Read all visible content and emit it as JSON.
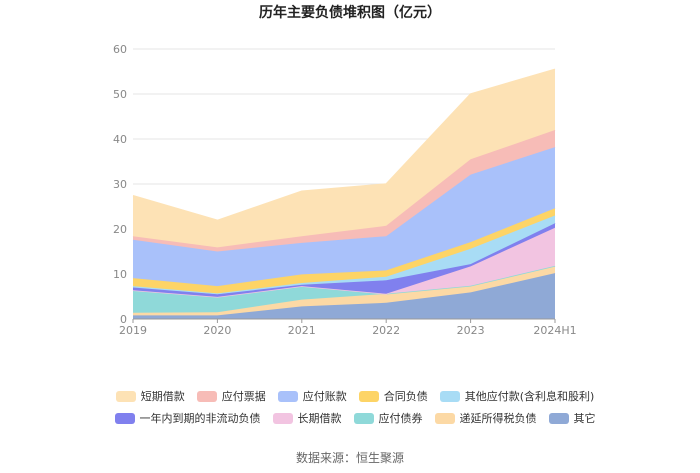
{
  "chart_data": {
    "type": "area",
    "stacked": true,
    "title": "历年主要负债堆积图（亿元）",
    "xlabel": "",
    "ylabel": "",
    "categories": [
      "2019",
      "2020",
      "2021",
      "2022",
      "2023",
      "2024H1"
    ],
    "yticks": [
      0,
      10,
      20,
      30,
      40,
      50,
      60
    ],
    "ylim": [
      0,
      60
    ],
    "grid": true,
    "legend_position": "bottom",
    "series": [
      {
        "name": "其它",
        "color": "#8fa9d6",
        "values": [
          0.8,
          0.8,
          2.8,
          3.6,
          5.9,
          10.2
        ]
      },
      {
        "name": "递延所得税负债",
        "color": "#fcd9a5",
        "values": [
          0.6,
          0.7,
          1.5,
          2.0,
          1.5,
          1.6
        ]
      },
      {
        "name": "应付债券",
        "color": "#8fd9d9",
        "values": [
          5.0,
          3.4,
          3.0,
          0.0,
          0.0,
          0.0
        ]
      },
      {
        "name": "长期借款",
        "color": "#f2c4e1",
        "values": [
          0.0,
          0.0,
          0.0,
          0.0,
          4.3,
          8.5
        ]
      },
      {
        "name": "一年内到期的非流动负债",
        "color": "#8080ee",
        "values": [
          0.6,
          0.6,
          0.3,
          3.0,
          0.5,
          1.0
        ]
      },
      {
        "name": "其他应付款(含利息和股利)",
        "color": "#a8dcf5",
        "values": [
          0.3,
          0.2,
          0.4,
          0.8,
          3.4,
          1.7
        ]
      },
      {
        "name": "合同负债",
        "color": "#fdd466",
        "values": [
          1.8,
          1.6,
          1.9,
          1.4,
          1.5,
          1.6
        ]
      },
      {
        "name": "应付账款",
        "color": "#a9c1fa",
        "values": [
          8.5,
          7.7,
          7.0,
          7.6,
          15.0,
          13.6
        ]
      },
      {
        "name": "应付票据",
        "color": "#f7bcb7",
        "values": [
          0.8,
          0.9,
          1.5,
          2.3,
          3.4,
          3.8
        ]
      },
      {
        "name": "短期借款",
        "color": "#fde2b5",
        "values": [
          9.0,
          6.0,
          10.0,
          9.3,
          14.5,
          13.5
        ]
      }
    ],
    "legend_rows": [
      [
        "短期借款",
        "应付票据",
        "应付账款",
        "合同负债",
        "其他应付款(含利息和股利)"
      ],
      [
        "一年内到期的非流动负债",
        "长期借款",
        "应付债券",
        "递延所得税负债",
        "其它"
      ]
    ]
  },
  "source_text": "数据来源：恒生聚源"
}
